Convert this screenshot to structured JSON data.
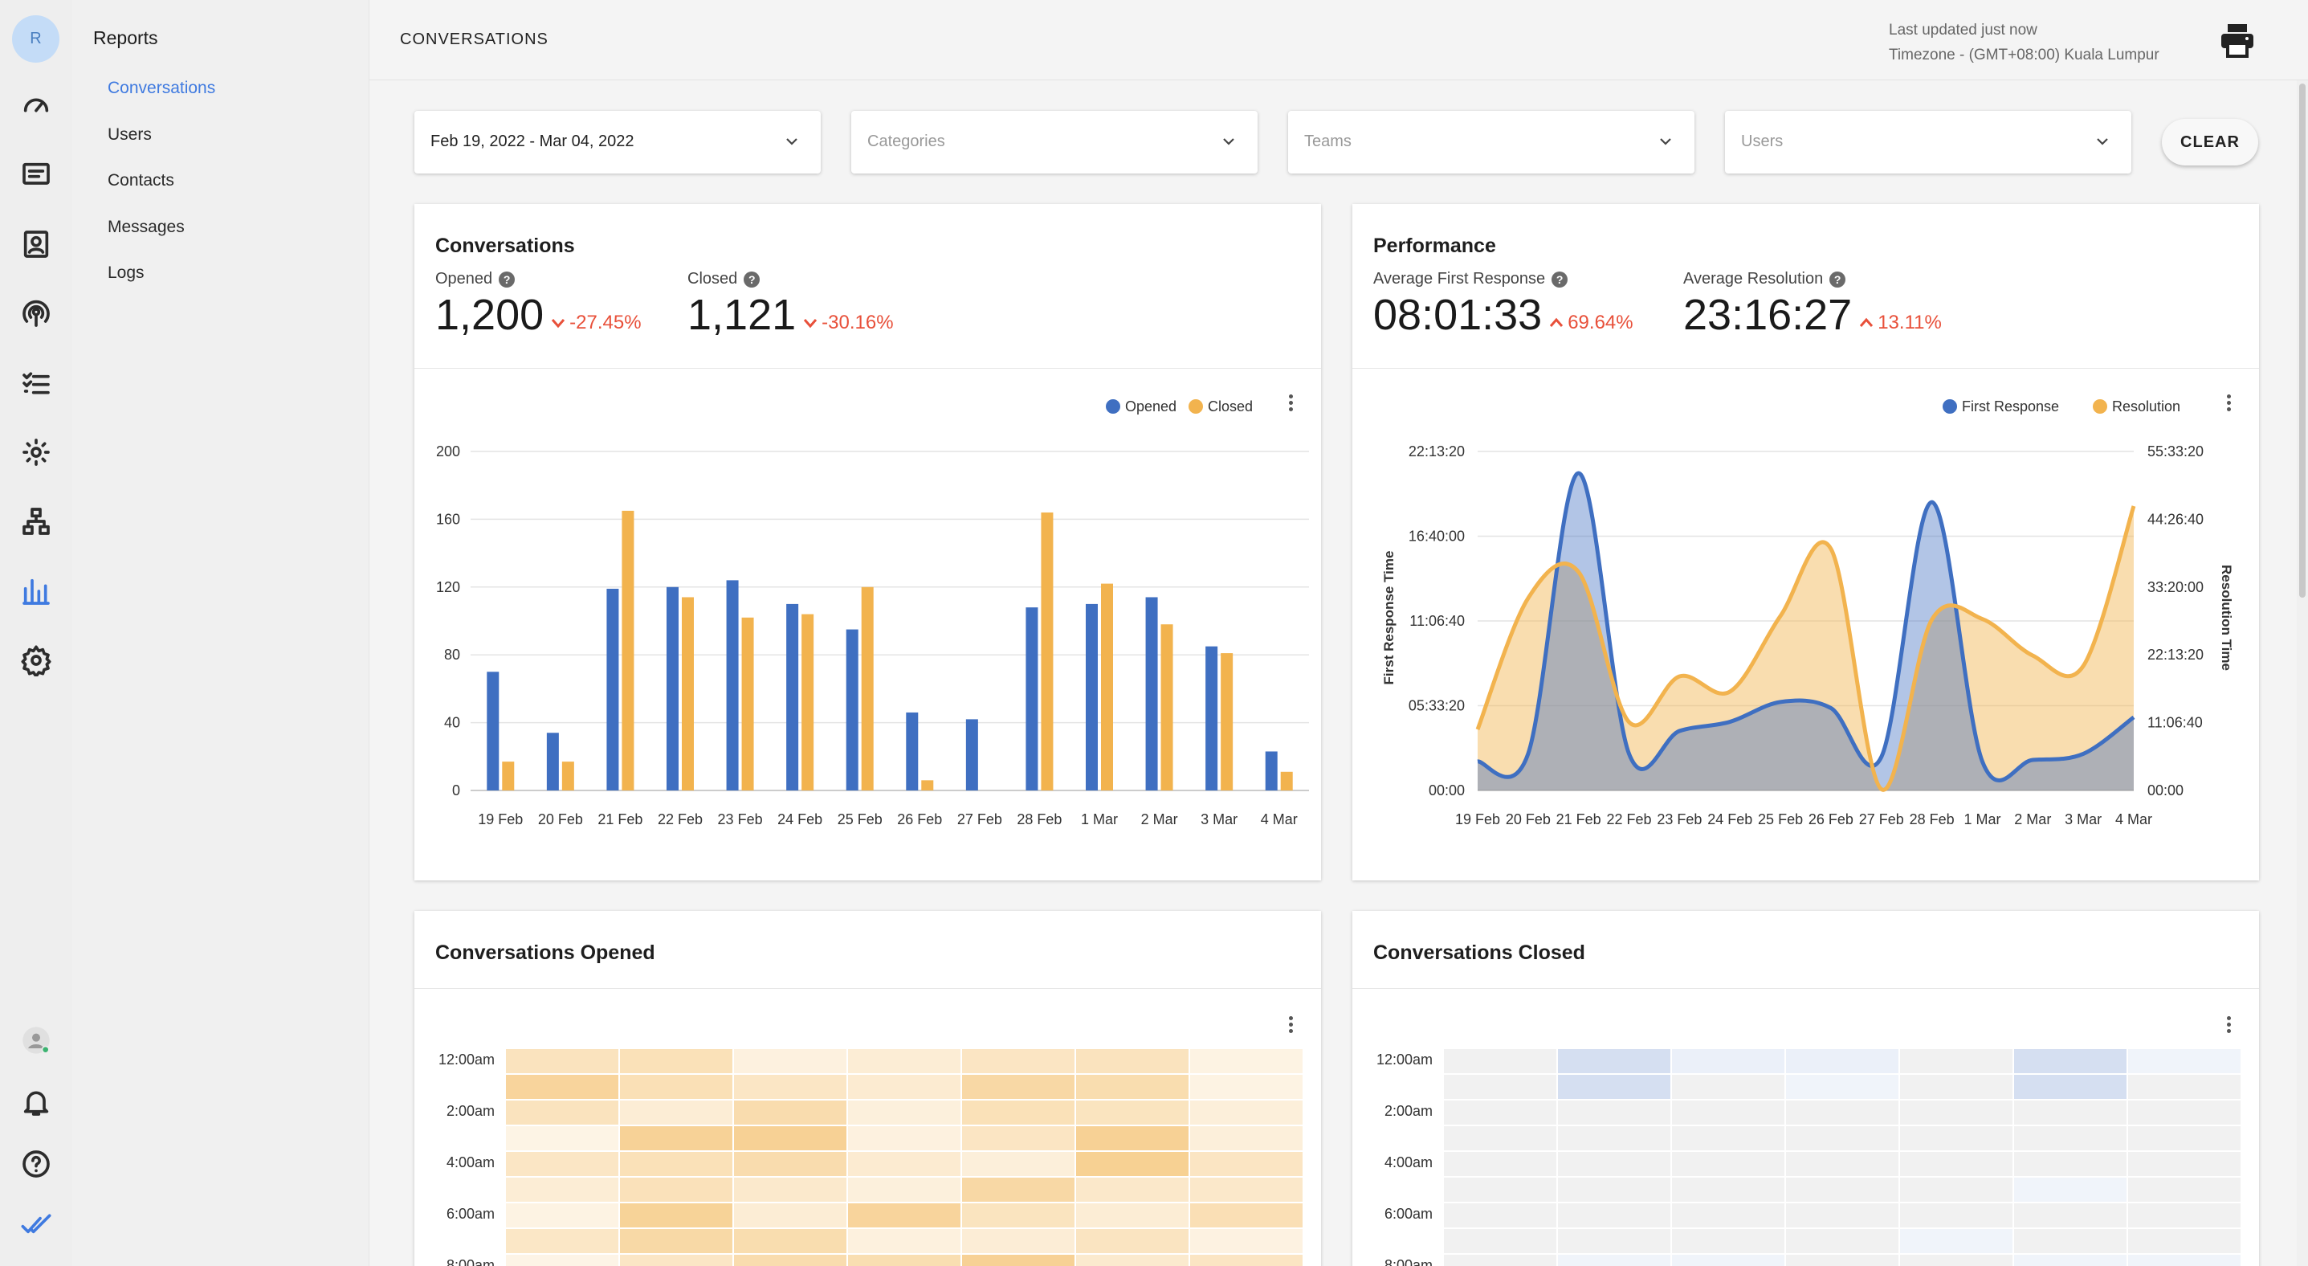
{
  "user": {
    "initial": "R"
  },
  "subnav": {
    "heading": "Reports",
    "items": [
      {
        "label": "Conversations",
        "active": true
      },
      {
        "label": "Users",
        "active": false
      },
      {
        "label": "Contacts",
        "active": false
      },
      {
        "label": "Messages",
        "active": false
      },
      {
        "label": "Logs",
        "active": false
      }
    ]
  },
  "header": {
    "title": "CONVERSATIONS",
    "last_updated": "Last updated just now",
    "timezone": "Timezone - (GMT+08:00) Kuala Lumpur"
  },
  "filters": {
    "date_range": "Feb 19, 2022 - Mar 04, 2022",
    "categories_placeholder": "Categories",
    "teams_placeholder": "Teams",
    "users_placeholder": "Users",
    "clear_label": "CLEAR"
  },
  "conversations_card": {
    "title": "Conversations",
    "opened_label": "Opened",
    "opened_value": "1,200",
    "opened_change": "-27.45%",
    "closed_label": "Closed",
    "closed_value": "1,121",
    "closed_change": "-30.16%"
  },
  "performance_card": {
    "title": "Performance",
    "first_response_label": "Average First Response",
    "first_response_value": "08:01:33",
    "first_response_change": "69.64%",
    "resolution_label": "Average Resolution",
    "resolution_value": "23:16:27",
    "resolution_change": "13.11%"
  },
  "opened_heatmap": {
    "title": "Conversations Opened",
    "row_labels": [
      "12:00am",
      "2:00am",
      "4:00am",
      "6:00am",
      "8:00am"
    ]
  },
  "closed_heatmap": {
    "title": "Conversations Closed",
    "row_labels": [
      "12:00am",
      "2:00am",
      "4:00am",
      "6:00am",
      "8:00am"
    ]
  },
  "colors": {
    "blue": "#3f6fc1",
    "orange": "#f2b34e",
    "accent": "#3f7ae0",
    "negative": "#e8503a"
  },
  "chart_data": [
    {
      "type": "bar",
      "title": "",
      "categories": [
        "19 Feb",
        "20 Feb",
        "21 Feb",
        "22 Feb",
        "23 Feb",
        "24 Feb",
        "25 Feb",
        "26 Feb",
        "27 Feb",
        "28 Feb",
        "1 Mar",
        "2 Mar",
        "3 Mar",
        "4 Mar"
      ],
      "series": [
        {
          "name": "Opened",
          "color": "#3f6fc1",
          "values": [
            70,
            34,
            119,
            120,
            124,
            110,
            95,
            46,
            42,
            108,
            110,
            114,
            85,
            23
          ]
        },
        {
          "name": "Closed",
          "color": "#f2b34e",
          "values": [
            17,
            17,
            165,
            114,
            102,
            104,
            120,
            6,
            0,
            164,
            122,
            98,
            81,
            11
          ]
        }
      ],
      "yticks": [
        "0",
        "40",
        "80",
        "120",
        "160",
        "200"
      ],
      "ylim": [
        0,
        200
      ],
      "legend": "top-right",
      "grid": true
    },
    {
      "type": "area",
      "title": "",
      "categories": [
        "19 Feb",
        "20 Feb",
        "21 Feb",
        "22 Feb",
        "23 Feb",
        "24 Feb",
        "25 Feb",
        "26 Feb",
        "27 Feb",
        "28 Feb",
        "1 Mar",
        "2 Mar",
        "3 Mar",
        "4 Mar"
      ],
      "series": [
        {
          "name": "First Response",
          "color": "#3f6fc1",
          "axis": "left",
          "values": [
            1.9,
            2.4,
            20.8,
            2.4,
            3.9,
            4.5,
            5.8,
            5.4,
            2.2,
            18.9,
            1.9,
            2.0,
            2.4,
            4.8
          ]
        },
        {
          "name": "Resolution",
          "color": "#f2b34e",
          "axis": "right",
          "values": [
            10.0,
            31.5,
            35.8,
            11.2,
            18.7,
            16.2,
            28.6,
            39.6,
            0.2,
            28.0,
            28.1,
            22.1,
            20.4,
            46.6
          ]
        }
      ],
      "ylabel_left": "First Response Time",
      "ylabel_right": "Resolution Time",
      "yticks_left": [
        "00:00",
        "05:33:20",
        "11:06:40",
        "16:40:00",
        "22:13:20"
      ],
      "yticks_right": [
        "00:00",
        "11:06:40",
        "22:13:20",
        "33:20:00",
        "44:26:40",
        "55:33:20"
      ],
      "ylim_left_hours": [
        0,
        22.222
      ],
      "ylim_right_hours": [
        0,
        55.556
      ],
      "legend": "top-right",
      "grid": true
    }
  ]
}
